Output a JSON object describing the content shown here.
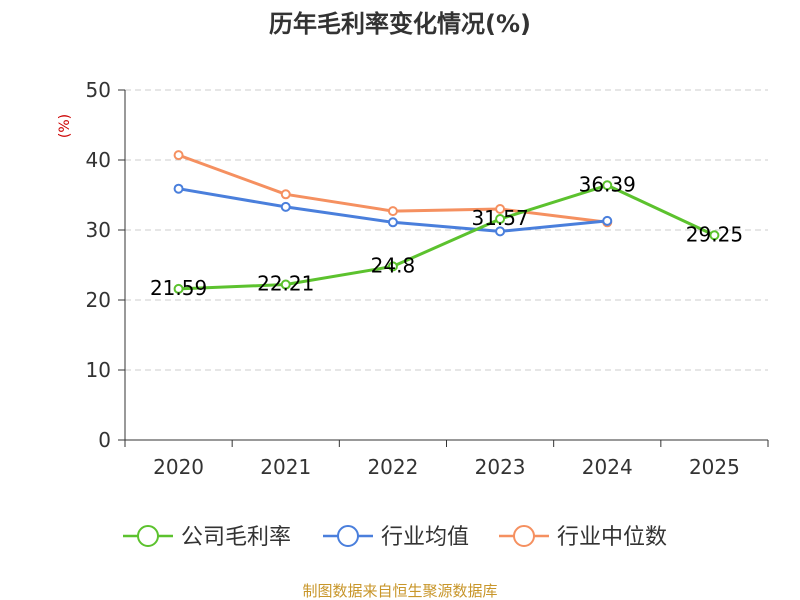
{
  "chart_data": {
    "type": "line",
    "title": "历年毛利率变化情况(%)",
    "unit_label": "(%)",
    "categories": [
      "2020",
      "2021",
      "2022",
      "2023",
      "2024",
      "2025"
    ],
    "ylim": [
      0,
      50
    ],
    "yticks": [
      "0",
      "10",
      "20",
      "30",
      "40",
      "50"
    ],
    "grid": true,
    "legend_position": "bottom",
    "series": [
      {
        "name": "公司毛利率",
        "color": "#5cc22e",
        "values": [
          21.59,
          22.21,
          24.8,
          31.57,
          36.39,
          29.25
        ],
        "labels": [
          "21.59",
          "22.21",
          "24.8",
          "31.57",
          "36.39",
          "29.25"
        ]
      },
      {
        "name": "行业均值",
        "color": "#4a7fdc",
        "values": [
          35.9,
          33.3,
          31.1,
          29.8,
          31.3,
          null
        ],
        "labels": []
      },
      {
        "name": "行业中位数",
        "color": "#f59060",
        "values": [
          40.7,
          35.1,
          32.7,
          33.0,
          31.1,
          null
        ],
        "labels": []
      }
    ],
    "source": "制图数据来自恒生聚源数据库"
  }
}
